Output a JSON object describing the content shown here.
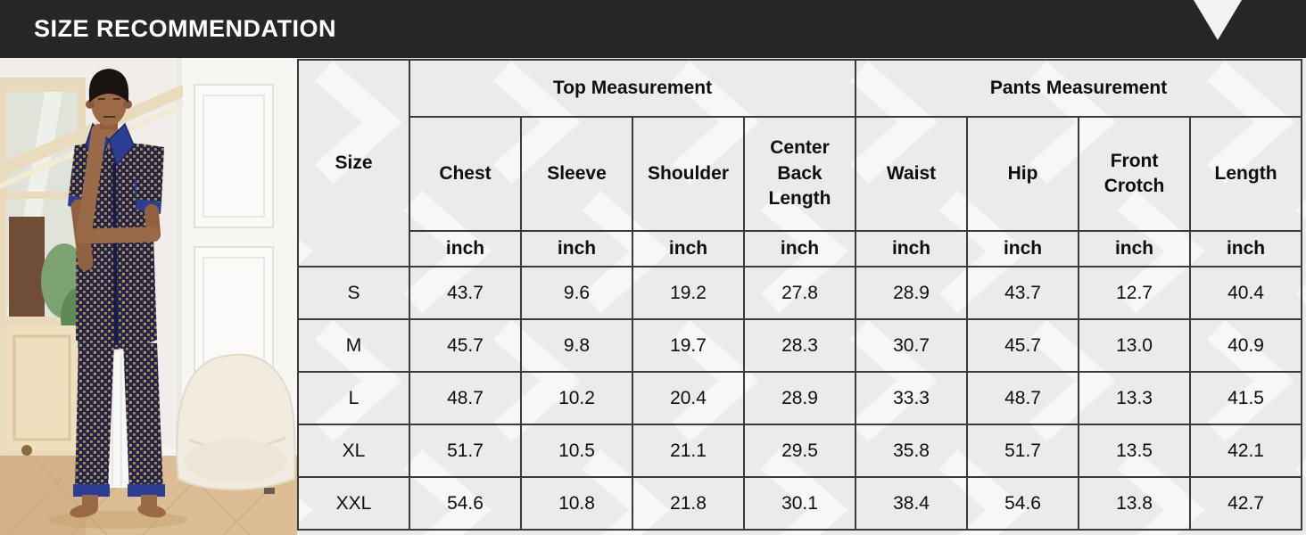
{
  "header": {
    "title": "SIZE RECOMMENDATION",
    "triangle_icon": "down-triangle"
  },
  "colors": {
    "banner_bg": "#262626",
    "banner_fg": "#ffffff",
    "table_bg": "#ebebeb",
    "table_border": "#3a3a3a",
    "pajama_navy": "#1d2557",
    "pajama_gold": "#d2992e",
    "collar_blue": "#2c3e93"
  },
  "photo": {
    "description": "Man wearing a navy blue short-sleeve pajama set with gold dot pattern, standing barefoot in a bright room with a glass door, white paneled wall, white armchair and wood floor"
  },
  "chart_data": {
    "type": "table",
    "title": "SIZE RECOMMENDATION",
    "size_label": "Size",
    "unit": "inch",
    "groups": [
      {
        "label": "Top Measurement",
        "columns": [
          "Chest",
          "Sleeve",
          "Shoulder",
          "Center Back Length"
        ]
      },
      {
        "label": "Pants Measurement",
        "columns": [
          "Waist",
          "Hip",
          "Front Crotch",
          "Length"
        ]
      }
    ],
    "unit_row": [
      "inch",
      "inch",
      "inch",
      "inch",
      "inch",
      "inch",
      "inch",
      "inch"
    ],
    "rows": [
      {
        "size": "S",
        "values": [
          "43.7",
          "9.6",
          "19.2",
          "27.8",
          "28.9",
          "43.7",
          "12.7",
          "40.4"
        ]
      },
      {
        "size": "M",
        "values": [
          "45.7",
          "9.8",
          "19.7",
          "28.3",
          "30.7",
          "45.7",
          "13.0",
          "40.9"
        ]
      },
      {
        "size": "L",
        "values": [
          "48.7",
          "10.2",
          "20.4",
          "28.9",
          "33.3",
          "48.7",
          "13.3",
          "41.5"
        ]
      },
      {
        "size": "XL",
        "values": [
          "51.7",
          "10.5",
          "21.1",
          "29.5",
          "35.8",
          "51.7",
          "13.5",
          "42.1"
        ]
      },
      {
        "size": "XXL",
        "values": [
          "54.6",
          "10.8",
          "21.8",
          "30.1",
          "38.4",
          "54.6",
          "13.8",
          "42.7"
        ]
      }
    ]
  }
}
